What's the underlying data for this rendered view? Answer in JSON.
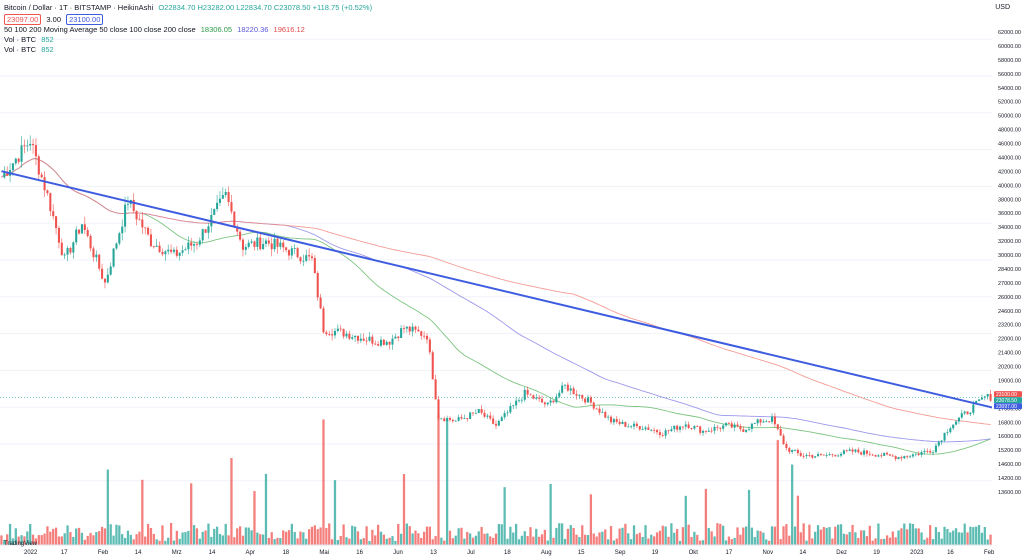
{
  "header": {
    "symbol": "Bitcoin / Dollar · 1T · BITSTAMP · HeikinAshi",
    "ohlc": "O22834.70 H23282.00 L22834.70 C23078.50 +118.75 (+0.52%)",
    "bid": "23097.00",
    "spread": "3.00",
    "ask": "23100.00",
    "ma_label": "50 100 200 Moving Average 50 close 100 close 200 close",
    "ma50": "18306.05",
    "ma100": "18220.36",
    "ma200": "19616.12",
    "vol1": "Vol · BTC",
    "vol1_val": "852",
    "vol2": "Vol · BTC",
    "vol2_val": "852",
    "currency": "USD",
    "watermark": "TradingView"
  },
  "colors": {
    "up": "#26a69a",
    "down": "#ef5350",
    "trend": "#3e5ce0",
    "ma50": "#66bb6a",
    "ma100": "#8c86e8",
    "ma200": "#f28b82"
  },
  "chart_data": {
    "type": "candlestick",
    "y_ticks": [
      "62000.00",
      "60000.00",
      "58000.00",
      "56000.00",
      "54000.00",
      "52000.00",
      "50000.00",
      "48000.00",
      "46000.00",
      "44000.00",
      "42000.00",
      "40000.00",
      "38000.00",
      "36000.00",
      "34000.00",
      "32000.00",
      "30000.00",
      "28400.00",
      "27000.00",
      "26000.00",
      "24600.00",
      "23200.00",
      "22000.00",
      "21400.00",
      "20200.00",
      "19000.00",
      "18200.00",
      "17600.00",
      "16800.00",
      "16000.00",
      "15200.00",
      "14600.00",
      "14200.00",
      "13600.00"
    ],
    "x_labels": [
      "2022",
      "17",
      "Feb",
      "14",
      "Mrz",
      "14",
      "Apr",
      "18",
      "Mai",
      "16",
      "Jun",
      "13",
      "Jul",
      "18",
      "Aug",
      "15",
      "Sep",
      "19",
      "Okt",
      "17",
      "Nov",
      "14",
      "Dez",
      "19",
      "2023",
      "16",
      "Feb"
    ],
    "price_tags": [
      "23100.00",
      "23078.50",
      "23097.00"
    ],
    "ylim": [
      13000,
      63000
    ],
    "anchors": [
      [
        0,
        47000
      ],
      [
        10,
        51000
      ],
      [
        16,
        45000
      ],
      [
        22,
        38000
      ],
      [
        28,
        42000
      ],
      [
        36,
        35500
      ],
      [
        44,
        44500
      ],
      [
        52,
        40000
      ],
      [
        60,
        38500
      ],
      [
        68,
        40000
      ],
      [
        78,
        45000
      ],
      [
        84,
        39500
      ],
      [
        92,
        40000
      ],
      [
        100,
        39000
      ],
      [
        108,
        38000
      ],
      [
        112,
        30500
      ],
      [
        120,
        30000
      ],
      [
        130,
        29200
      ],
      [
        135,
        29200
      ],
      [
        140,
        30600
      ],
      [
        148,
        29800
      ],
      [
        152,
        21000
      ],
      [
        158,
        20500
      ],
      [
        166,
        21500
      ],
      [
        172,
        20000
      ],
      [
        182,
        23500
      ],
      [
        190,
        22200
      ],
      [
        196,
        24300
      ],
      [
        205,
        22500
      ],
      [
        212,
        20500
      ],
      [
        218,
        20000
      ],
      [
        224,
        19800
      ],
      [
        230,
        19200
      ],
      [
        238,
        20200
      ],
      [
        244,
        19400
      ],
      [
        252,
        20000
      ],
      [
        258,
        19600
      ],
      [
        264,
        20500
      ],
      [
        268,
        20700
      ],
      [
        273,
        17500
      ],
      [
        278,
        16800
      ],
      [
        285,
        16700
      ],
      [
        290,
        16900
      ],
      [
        296,
        17200
      ],
      [
        302,
        17000
      ],
      [
        308,
        16700
      ],
      [
        312,
        16600
      ],
      [
        318,
        16900
      ],
      [
        324,
        17400
      ],
      [
        330,
        20000
      ],
      [
        336,
        21500
      ],
      [
        342,
        23100
      ]
    ],
    "trend_line": {
      "from": [
        0,
        47000
      ],
      "to": [
        342,
        23100
      ]
    },
    "annotation": "none"
  }
}
